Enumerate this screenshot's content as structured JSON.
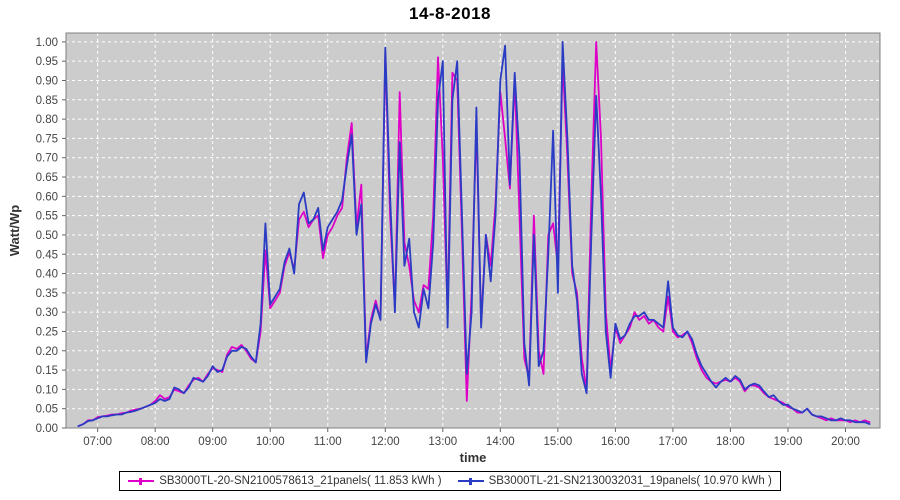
{
  "header": {
    "title": "14-8-2018"
  },
  "chart_data": {
    "type": "line",
    "title": "14-8-2018",
    "xlabel": "time",
    "ylabel": "Watt/Wp",
    "plot_bg_color": "#cccccc",
    "grid_color": "#ffffff",
    "grid_style": "dashed",
    "border_color": "#808080",
    "tick_label_color": "#444444",
    "axis_label_color": "#333333",
    "ylim": [
      0,
      1.023
    ],
    "xlim_minutes": [
      387,
      1236
    ],
    "y_ticks": [
      0.0,
      0.05,
      0.1,
      0.15,
      0.2,
      0.25,
      0.3,
      0.35,
      0.4,
      0.45,
      0.5,
      0.55,
      0.6,
      0.65,
      0.7,
      0.75,
      0.8,
      0.85,
      0.9,
      0.95,
      1.0
    ],
    "y_tick_labels": [
      "0.00",
      "0.05",
      "0.10",
      "0.15",
      "0.20",
      "0.25",
      "0.30",
      "0.35",
      "0.40",
      "0.45",
      "0.50",
      "0.55",
      "0.60",
      "0.65",
      "0.70",
      "0.75",
      "0.80",
      "0.85",
      "0.90",
      "0.95",
      "1.00"
    ],
    "x_tick_minutes": [
      420,
      480,
      540,
      600,
      660,
      720,
      780,
      840,
      900,
      960,
      1020,
      1080,
      1140,
      1200
    ],
    "x_tick_labels": [
      "07:00",
      "08:00",
      "09:00",
      "10:00",
      "11:00",
      "12:00",
      "13:00",
      "14:00",
      "15:00",
      "16:00",
      "17:00",
      "18:00",
      "19:00",
      "20:00"
    ],
    "start_time": "06:40",
    "start_minutes": 400,
    "step_minutes": 5,
    "series": [
      {
        "name": "SB3000TL-20-SN2100578613_21panels",
        "energy_kwh": "11.853",
        "legend_label": "SB3000TL-20-SN2100578613_21panels( 11.853 kWh )",
        "color": "#DF00C8",
        "values": [
          0.005,
          0.01,
          0.02,
          0.02,
          0.028,
          0.03,
          0.032,
          0.035,
          0.035,
          0.038,
          0.04,
          0.045,
          0.048,
          0.05,
          0.055,
          0.06,
          0.07,
          0.085,
          0.075,
          0.08,
          0.1,
          0.095,
          0.09,
          0.11,
          0.125,
          0.13,
          0.12,
          0.14,
          0.155,
          0.15,
          0.145,
          0.19,
          0.21,
          0.205,
          0.215,
          0.2,
          0.18,
          0.17,
          0.25,
          0.46,
          0.31,
          0.33,
          0.35,
          0.42,
          0.455,
          0.41,
          0.54,
          0.56,
          0.52,
          0.54,
          0.55,
          0.44,
          0.5,
          0.52,
          0.55,
          0.57,
          0.7,
          0.79,
          0.52,
          0.63,
          0.18,
          0.28,
          0.33,
          0.28,
          0.97,
          0.55,
          0.31,
          0.87,
          0.48,
          0.42,
          0.33,
          0.3,
          0.37,
          0.36,
          0.55,
          0.96,
          0.7,
          0.3,
          0.92,
          0.9,
          0.5,
          0.07,
          0.35,
          0.79,
          0.27,
          0.5,
          0.42,
          0.58,
          0.87,
          0.75,
          0.62,
          0.9,
          0.55,
          0.18,
          0.13,
          0.55,
          0.2,
          0.14,
          0.5,
          0.53,
          0.42,
          0.95,
          0.7,
          0.4,
          0.35,
          0.18,
          0.1,
          0.6,
          1.0,
          0.75,
          0.3,
          0.15,
          0.26,
          0.22,
          0.24,
          0.26,
          0.3,
          0.28,
          0.29,
          0.27,
          0.28,
          0.26,
          0.25,
          0.34,
          0.25,
          0.235,
          0.24,
          0.25,
          0.22,
          0.18,
          0.15,
          0.13,
          0.12,
          0.115,
          0.12,
          0.125,
          0.12,
          0.13,
          0.12,
          0.095,
          0.11,
          0.11,
          0.105,
          0.09,
          0.08,
          0.075,
          0.07,
          0.065,
          0.055,
          0.05,
          0.04,
          0.04,
          0.05,
          0.035,
          0.03,
          0.025,
          0.02,
          0.025,
          0.02,
          0.02,
          0.02,
          0.015,
          0.02,
          0.015,
          0.02,
          0.015
        ]
      },
      {
        "name": "SB3000TL-21-SN2130032031_19panels",
        "energy_kwh": "10.970",
        "legend_label": "SB3000TL-21-SN2130032031_19panels( 10.970 kWh )",
        "color": "#2A3CC4",
        "values": [
          0.005,
          0.01,
          0.018,
          0.02,
          0.025,
          0.03,
          0.03,
          0.033,
          0.035,
          0.035,
          0.04,
          0.042,
          0.045,
          0.05,
          0.055,
          0.06,
          0.065,
          0.075,
          0.07,
          0.075,
          0.105,
          0.1,
          0.09,
          0.105,
          0.13,
          0.125,
          0.12,
          0.135,
          0.16,
          0.145,
          0.15,
          0.185,
          0.2,
          0.2,
          0.21,
          0.205,
          0.185,
          0.17,
          0.27,
          0.53,
          0.32,
          0.34,
          0.36,
          0.43,
          0.465,
          0.4,
          0.58,
          0.61,
          0.53,
          0.54,
          0.57,
          0.46,
          0.52,
          0.54,
          0.56,
          0.59,
          0.68,
          0.76,
          0.5,
          0.58,
          0.17,
          0.27,
          0.32,
          0.28,
          0.985,
          0.6,
          0.3,
          0.74,
          0.42,
          0.49,
          0.3,
          0.26,
          0.36,
          0.31,
          0.48,
          0.85,
          0.95,
          0.26,
          0.85,
          0.95,
          0.55,
          0.14,
          0.3,
          0.83,
          0.26,
          0.5,
          0.38,
          0.55,
          0.9,
          0.99,
          0.63,
          0.92,
          0.7,
          0.22,
          0.11,
          0.5,
          0.16,
          0.2,
          0.45,
          0.77,
          0.35,
          1.0,
          0.75,
          0.42,
          0.33,
          0.14,
          0.09,
          0.5,
          0.86,
          0.6,
          0.25,
          0.13,
          0.27,
          0.23,
          0.24,
          0.27,
          0.29,
          0.29,
          0.3,
          0.28,
          0.28,
          0.27,
          0.26,
          0.38,
          0.26,
          0.24,
          0.235,
          0.25,
          0.23,
          0.19,
          0.16,
          0.14,
          0.12,
          0.105,
          0.12,
          0.13,
          0.12,
          0.135,
          0.125,
          0.1,
          0.11,
          0.115,
          0.11,
          0.095,
          0.08,
          0.085,
          0.07,
          0.06,
          0.06,
          0.05,
          0.045,
          0.04,
          0.05,
          0.035,
          0.03,
          0.03,
          0.025,
          0.02,
          0.02,
          0.025,
          0.02,
          0.02,
          0.015,
          0.015,
          0.015,
          0.01
        ]
      }
    ]
  },
  "legend": {
    "items": [
      {
        "label": "SB3000TL-20-SN2100578613_21panels( 11.853 kWh )"
      },
      {
        "label": "SB3000TL-21-SN2130032031_19panels( 10.970 kWh )"
      }
    ]
  }
}
